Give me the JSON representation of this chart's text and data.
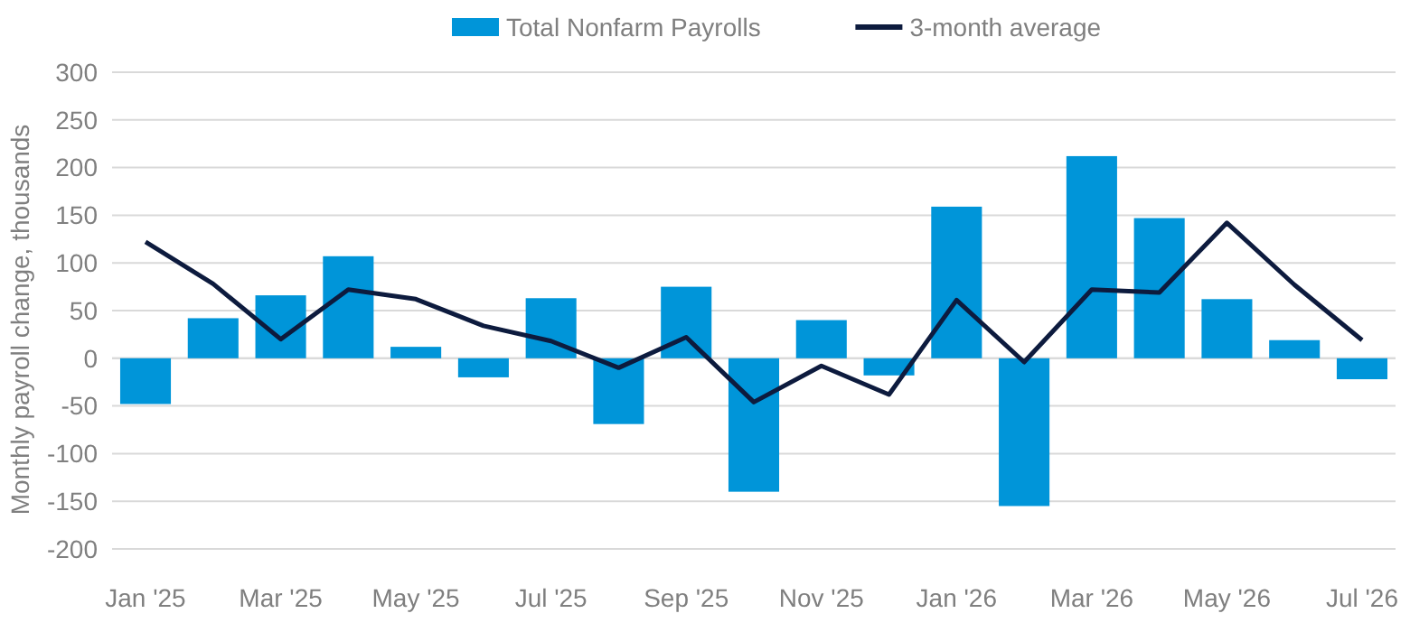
{
  "chart_data": {
    "type": "bar",
    "ylabel": "Monthly payroll change, thousands",
    "categories": [
      "Jan '25",
      null,
      "Mar '25",
      null,
      "May '25",
      null,
      "Jul '25",
      null,
      "Sep '25",
      null,
      "Nov '25",
      null,
      "Jan '26",
      null,
      "Mar '26",
      null,
      "May '26",
      null,
      "Jul '26"
    ],
    "series": [
      {
        "name": "Total Nonfarm Payrolls",
        "color": "#0095d9",
        "values": [
          -48,
          42,
          66,
          107,
          12,
          -20,
          63,
          -69,
          75,
          -140,
          40,
          -18,
          159,
          -155,
          212,
          147,
          62,
          19,
          -22
        ]
      },
      {
        "name": "3-month average",
        "type": "line",
        "color": "#0d1b3e",
        "values": [
          122,
          78,
          20,
          72,
          62,
          34,
          18,
          -10,
          22,
          -46,
          -8,
          -38,
          61,
          -4,
          72,
          69,
          142,
          77,
          19
        ]
      }
    ],
    "ylim": [
      -200,
      300
    ],
    "yticks": [
      -200,
      -150,
      -100,
      -50,
      0,
      50,
      100,
      150,
      200,
      250,
      300
    ],
    "grid": "y",
    "legend": "top",
    "marker": "none",
    "line_style": "solid"
  }
}
